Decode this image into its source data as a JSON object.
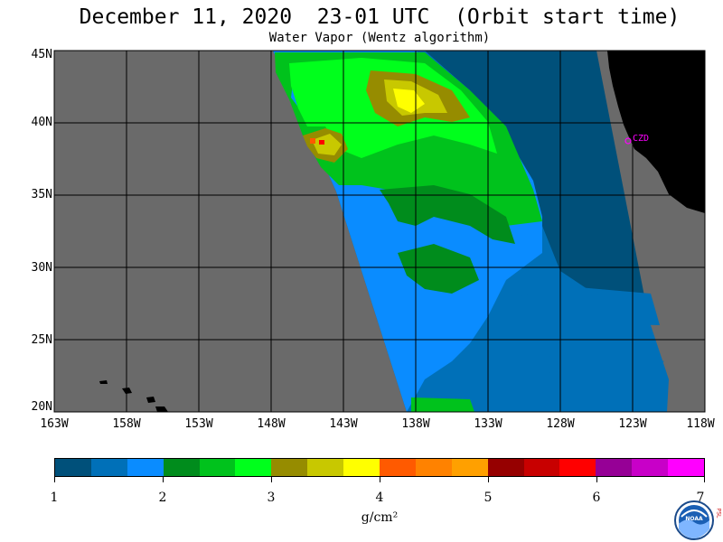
{
  "title": "December 11, 2020  23-01 UTC  (Orbit start time)",
  "subtitle": "Water Vapor (Wentz algorithm)",
  "map": {
    "lon_range": [
      -163,
      -118
    ],
    "lat_range": [
      20,
      45
    ],
    "lat_labels": [
      "45N",
      "40N",
      "35N",
      "30N",
      "25N",
      "20N"
    ],
    "lon_labels": [
      "163W",
      "158W",
      "153W",
      "148W",
      "143W",
      "138W",
      "133W",
      "128W",
      "123W",
      "118W"
    ],
    "station_label": "CZD",
    "colors": {
      "no_data": "#6a6a6a",
      "land": "#000000",
      "grid": "#000000",
      "station": "#ff00ff"
    }
  },
  "colorbar": {
    "ticks": [
      "1",
      "2",
      "3",
      "4",
      "5",
      "6",
      "7"
    ],
    "units": "g/cm²",
    "colors": [
      "#00507a",
      "#0070b8",
      "#0a8cff",
      "#008c1c",
      "#00c21c",
      "#00ff1c",
      "#968c00",
      "#c8c800",
      "#ffff00",
      "#ff5a00",
      "#ff8200",
      "#ffa000",
      "#960000",
      "#c80000",
      "#ff0000",
      "#960096",
      "#c800c8",
      "#ff00ff"
    ]
  },
  "logo": {
    "name": "NOAA",
    "side_text": "PSL"
  }
}
